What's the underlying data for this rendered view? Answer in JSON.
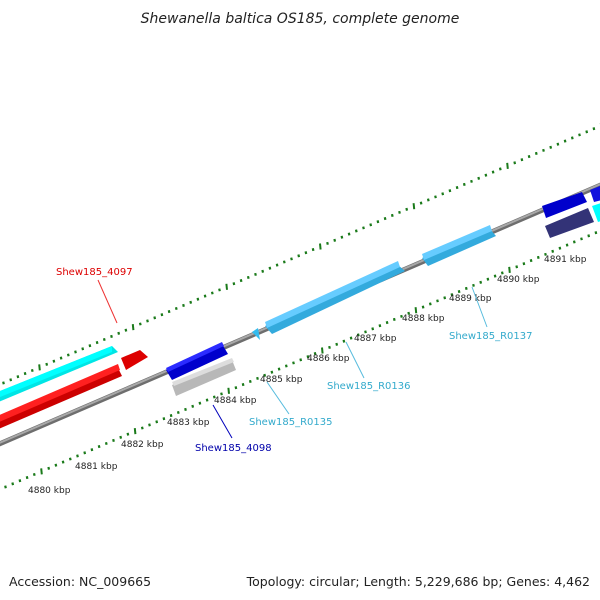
{
  "title": "Shewanella baltica OS185, complete genome",
  "footer": {
    "accession": "Accession: NC_009665",
    "summary": "Topology: circular; Length: 5,229,686 bp; Genes: 4,462"
  },
  "tick_labels": [
    "4880 kbp",
    "4881 kbp",
    "4882 kbp",
    "4883 kbp",
    "4884 kbp",
    "4885 kbp",
    "4886 kbp",
    "4887 kbp",
    "4888 kbp",
    "4889 kbp",
    "4890 kbp",
    "4891 kbp"
  ],
  "gene_labels": {
    "red": "Shew185_4097",
    "blue": "Shew185_4098",
    "r0135": "Shew185_R0135",
    "r0136": "Shew185_R0136",
    "r0137": "Shew185_R0137"
  },
  "colors": {
    "cds_forward": "#00ffff",
    "cds_red": "#ff0000",
    "cds_blue": "#0000dd",
    "rna": "#55ccff",
    "grey_feature": "#bbbbbb",
    "dark_feature": "#333377",
    "backbone": "#888888",
    "tick": "#1a7a1a"
  }
}
